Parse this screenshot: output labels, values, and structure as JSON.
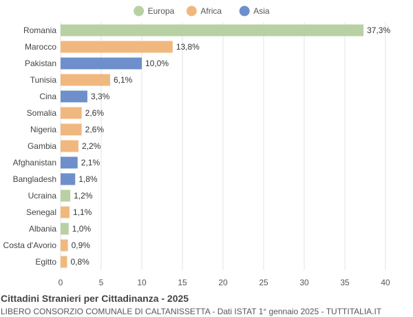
{
  "colors": {
    "Europa": "#b8d1a4",
    "Africa": "#f0b87f",
    "Asia": "#6e8fcb"
  },
  "chart_data": {
    "type": "bar",
    "orientation": "horizontal",
    "title": "Cittadini Stranieri per Cittadinanza - 2025",
    "subtitle": "LIBERO CONSORZIO COMUNALE DI CALTANISSETTA - Dati ISTAT 1° gennaio 2025 - TUTTITALIA.IT",
    "legend": [
      "Europa",
      "Africa",
      "Asia"
    ],
    "legend_position": "top-center",
    "categories": [
      "Romania",
      "Marocco",
      "Pakistan",
      "Tunisia",
      "Cina",
      "Somalia",
      "Nigeria",
      "Gambia",
      "Afghanistan",
      "Bangladesh",
      "Ucraina",
      "Senegal",
      "Albania",
      "Costa d'Avorio",
      "Egitto"
    ],
    "values": [
      37.3,
      13.8,
      10.0,
      6.1,
      3.3,
      2.6,
      2.6,
      2.2,
      2.1,
      1.8,
      1.2,
      1.1,
      1.0,
      0.9,
      0.8
    ],
    "value_labels": [
      "37,3%",
      "13,8%",
      "10,0%",
      "6,1%",
      "3,3%",
      "2,6%",
      "2,6%",
      "2,2%",
      "2,1%",
      "1,8%",
      "1,2%",
      "1,1%",
      "1,0%",
      "0,9%",
      "0,8%"
    ],
    "groups": [
      "Europa",
      "Africa",
      "Asia",
      "Africa",
      "Asia",
      "Africa",
      "Africa",
      "Africa",
      "Asia",
      "Asia",
      "Europa",
      "Africa",
      "Europa",
      "Africa",
      "Africa"
    ],
    "xlim": [
      0,
      40
    ],
    "xticks": [
      "0",
      "5",
      "10",
      "15",
      "20",
      "25",
      "30",
      "35",
      "40"
    ],
    "grid": true
  }
}
